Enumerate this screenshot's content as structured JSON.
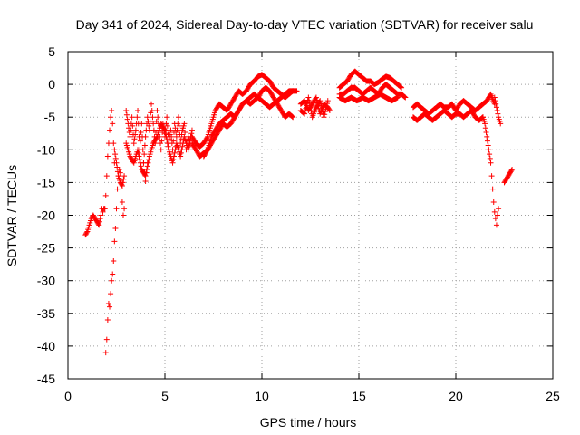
{
  "chart_data": {
    "type": "scatter",
    "title": "Day 341 of 2024, Sidereal Day-to-day VTEC variation (SDTVAR) for receiver salu",
    "xlabel": "GPS time / hours",
    "ylabel": "SDTVAR / TECUs",
    "xlim": [
      0,
      25
    ],
    "ylim": [
      -45,
      5
    ],
    "xticks": [
      0,
      5,
      10,
      15,
      20,
      25
    ],
    "yticks": [
      -45,
      -40,
      -35,
      -30,
      -25,
      -20,
      -15,
      -10,
      -5,
      0,
      5
    ],
    "grid": true,
    "marker": "+",
    "series": [
      {
        "name": "SDTVAR",
        "color": "#ff0000",
        "tracks": [
          {
            "x": [
              0.9,
              1.0,
              1.1,
              1.2,
              1.3,
              1.4,
              1.5,
              1.6,
              1.7,
              1.75,
              1.8,
              1.85,
              1.9
            ],
            "y": [
              -23,
              -22.5,
              -21.5,
              -20.5,
              -20,
              -20.5,
              -21,
              -21.5,
              -20,
              -19,
              -19.5,
              -19,
              -19
            ]
          },
          {
            "x": [
              1.9,
              1.95,
              2.0,
              2.05,
              2.1,
              2.15,
              2.2,
              2.25,
              2.3,
              2.35,
              2.4
            ],
            "y": [
              -19,
              -17,
              -14,
              -11,
              -9,
              -7,
              -5,
              -4,
              -6,
              -9,
              -12
            ]
          },
          {
            "x": [
              1.95,
              2.0,
              2.05,
              2.1,
              2.15,
              2.2,
              2.25,
              2.3,
              2.35,
              2.4,
              2.45,
              2.5,
              2.55,
              2.6,
              2.65,
              2.7,
              2.75,
              2.8,
              2.85,
              2.9
            ],
            "y": [
              -41,
              -39,
              -36,
              -33.5,
              -34,
              -32,
              -30,
              -29,
              -27,
              -24,
              -22,
              -19,
              -16,
              -14,
              -13,
              -13.5,
              -15,
              -18,
              -20,
              -19
            ]
          },
          {
            "x": [
              2.4,
              2.5,
              2.6,
              2.7,
              2.8,
              2.9
            ],
            "y": [
              -10,
              -12,
              -14,
              -15,
              -15.5,
              -14
            ]
          },
          {
            "x": [
              3.0,
              3.1,
              3.2,
              3.3,
              3.4,
              3.5,
              3.6,
              3.7,
              3.8,
              3.9,
              4.0,
              4.1,
              4.2,
              4.3,
              4.4,
              4.5,
              4.6,
              4.7,
              4.8,
              4.9,
              5.0,
              5.1,
              5.2,
              5.3,
              5.4,
              5.5,
              5.6,
              5.7,
              5.8,
              5.9,
              6.0,
              6.1,
              6.2,
              6.3
            ],
            "y": [
              -4,
              -6,
              -8,
              -5,
              -9,
              -7,
              -4,
              -10,
              -6,
              -12,
              -8,
              -5,
              -7,
              -3,
              -6,
              -9,
              -4,
              -7,
              -10,
              -6,
              -8,
              -5,
              -9,
              -7,
              -10,
              -6,
              -8,
              -5,
              -9,
              -7,
              -6,
              -10,
              -8,
              -9
            ]
          },
          {
            "x": [
              3.0,
              3.2,
              3.4,
              3.6,
              3.8,
              4.0,
              4.2,
              4.4,
              4.6,
              4.8,
              5.0,
              5.2,
              5.4,
              5.6,
              5.8,
              6.0,
              6.2,
              6.4
            ],
            "y": [
              -9,
              -11,
              -12,
              -10,
              -13,
              -14,
              -11,
              -9,
              -8,
              -6,
              -7,
              -10,
              -12,
              -9,
              -11,
              -8,
              -10,
              -7
            ]
          },
          {
            "x": [
              3.9,
              3.95,
              4.0,
              4.05,
              4.1
            ],
            "y": [
              -12,
              -13.5,
              -14.8,
              -13.5,
              -12
            ]
          },
          {
            "x": [
              6.4,
              6.6,
              6.8,
              7.0,
              7.2,
              7.4,
              7.6,
              7.8,
              8.0,
              8.2,
              8.4,
              8.6,
              8.8,
              9.0,
              9.2,
              9.4,
              9.6,
              9.8,
              10.0,
              10.2,
              10.4,
              10.6,
              10.8,
              11.0,
              11.2,
              11.4,
              11.6
            ],
            "y": [
              -8,
              -9,
              -9.5,
              -9,
              -8,
              -6,
              -4,
              -3,
              -3.5,
              -4,
              -3,
              -2,
              -1,
              -1.5,
              -1,
              0,
              0.5,
              1.2,
              1.5,
              1,
              0.5,
              -0.5,
              -1,
              -1.5,
              -2,
              -1.5,
              -1
            ]
          },
          {
            "x": [
              6.4,
              6.6,
              6.8,
              7.0,
              7.2,
              7.4,
              7.6,
              7.8,
              8.0,
              8.2,
              8.4,
              8.6,
              8.8,
              9.0,
              9.2,
              9.4,
              9.6,
              9.8,
              10.0,
              10.2,
              10.4,
              10.6,
              10.8,
              11.0,
              11.2,
              11.4,
              11.6
            ],
            "y": [
              -9,
              -10,
              -11,
              -10.5,
              -10,
              -8,
              -7,
              -6,
              -5.5,
              -5,
              -4.5,
              -5,
              -4,
              -3,
              -2.5,
              -3,
              -2.5,
              -2,
              -1,
              -0.5,
              -1,
              -2,
              -3,
              -4,
              -5,
              -4.5,
              -5
            ]
          },
          {
            "x": [
              7.0,
              7.2,
              7.4,
              7.6,
              7.8,
              8.0,
              8.2,
              8.4,
              8.6,
              8.8,
              9.0,
              9.2,
              9.4,
              9.6,
              9.8,
              10.0,
              10.2,
              10.4,
              10.6,
              10.8,
              11.0,
              11.2,
              11.4,
              11.6,
              11.8
            ],
            "y": [
              -11,
              -10,
              -9,
              -8,
              -7,
              -6,
              -6.5,
              -6,
              -5,
              -4,
              -3,
              -2.5,
              -2,
              -1.5,
              -2,
              -2.5,
              -3,
              -3.5,
              -3,
              -2.5,
              -2,
              -1.5,
              -1,
              -1,
              -1
            ]
          },
          {
            "x": [
              12.0,
              12.2,
              12.4,
              12.6,
              12.8,
              13.0,
              13.2,
              13.4,
              13.5
            ],
            "y": [
              -3,
              -2.5,
              -4,
              -3,
              -2,
              -4.5,
              -3,
              -3.5,
              -4
            ]
          },
          {
            "x": [
              12.0,
              12.2,
              12.4,
              12.6,
              12.8,
              13.0,
              13.2,
              13.4
            ],
            "y": [
              -4,
              -4.5,
              -2,
              -5,
              -3.5,
              -2.5,
              -5,
              -2.5
            ]
          },
          {
            "x": [
              14.0,
              14.2,
              14.4,
              14.6,
              14.8,
              15.0,
              15.2,
              15.4,
              15.6,
              15.8,
              16.0,
              16.2,
              16.4,
              16.6,
              16.8,
              17.0,
              17.2
            ],
            "y": [
              -0.5,
              0,
              0.5,
              1.5,
              2,
              1.5,
              1,
              0.5,
              0.5,
              0,
              0.3,
              0.8,
              1.2,
              1,
              0.5,
              0,
              -0.5
            ]
          },
          {
            "x": [
              14.0,
              14.2,
              14.4,
              14.6,
              14.8,
              15.0,
              15.2,
              15.4,
              15.6,
              15.8,
              16.0,
              16.2,
              16.4,
              16.6,
              16.8,
              17.0,
              17.2,
              17.4
            ],
            "y": [
              -1.5,
              -1.5,
              -1,
              -0.5,
              -0.5,
              -1,
              -1.5,
              -1,
              -0.5,
              -1,
              -1.5,
              -0.5,
              0,
              -0.5,
              -1,
              -1.5,
              -1.5,
              -2
            ]
          },
          {
            "x": [
              14.0,
              14.3,
              14.6,
              14.9,
              15.2,
              15.5,
              15.8,
              16.1,
              16.4,
              16.7,
              17.0
            ],
            "y": [
              -2,
              -2.5,
              -2,
              -2.5,
              -2,
              -2.5,
              -2,
              -1.5,
              -2,
              -2.5,
              -2
            ]
          },
          {
            "x": [
              17.8,
              18.0,
              18.2,
              18.4,
              18.6,
              18.8,
              19.0,
              19.2,
              19.4,
              19.6,
              19.8,
              20.0,
              20.2,
              20.4,
              20.6,
              20.8,
              21.0,
              21.2,
              21.4,
              21.6,
              21.8,
              22.0
            ],
            "y": [
              -3.5,
              -3,
              -3.5,
              -4,
              -4.5,
              -4,
              -3.5,
              -3,
              -3.5,
              -3.5,
              -3,
              -4,
              -3,
              -2.5,
              -3,
              -3.5,
              -4,
              -3.5,
              -3,
              -2.5,
              -1.5,
              -3
            ]
          },
          {
            "x": [
              17.8,
              18.0,
              18.2,
              18.4,
              18.6,
              18.8,
              19.0,
              19.2,
              19.4,
              19.6,
              19.8,
              20.0,
              20.2,
              20.4,
              20.6,
              20.8,
              21.0,
              21.2,
              21.4
            ],
            "y": [
              -5,
              -5.5,
              -5,
              -4.5,
              -5,
              -5.5,
              -5,
              -4.5,
              -4,
              -4.5,
              -5,
              -4.5,
              -4.5,
              -5,
              -4.5,
              -4,
              -5,
              -5.5,
              -5
            ]
          },
          {
            "x": [
              21.4,
              21.5,
              21.6,
              21.7,
              21.8,
              21.85,
              21.9,
              21.95,
              22.0,
              22.05,
              22.1,
              22.15,
              22.2
            ],
            "y": [
              -5,
              -6,
              -8,
              -10,
              -12,
              -14,
              -16,
              -18,
              -19.5,
              -20.5,
              -21.5,
              -20,
              -19
            ]
          },
          {
            "x": [
              22.0,
              22.1,
              22.2,
              22.3
            ],
            "y": [
              -2,
              -3.5,
              -5,
              -6
            ]
          },
          {
            "x": [
              22.5,
              22.6,
              22.7,
              22.8,
              22.9
            ],
            "y": [
              -15,
              -14.5,
              -14,
              -13.5,
              -13
            ]
          }
        ]
      }
    ]
  }
}
